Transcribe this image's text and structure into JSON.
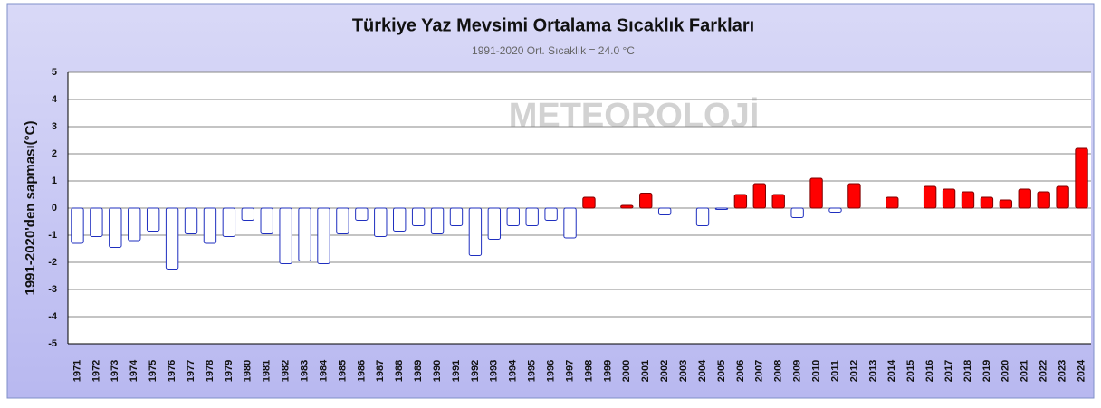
{
  "chart_data": {
    "type": "bar",
    "title": "Türkiye Yaz Mevsimi Ortalama Sıcaklık Farkları",
    "subtitle": "1991-2020 Ort. Sıcaklık = 24.0 °C",
    "y_label": "1991-2020'den sapması(°C)",
    "watermark": "METEOROLOJİ",
    "categories": [
      "1971",
      "1972",
      "1973",
      "1974",
      "1975",
      "1976",
      "1977",
      "1978",
      "1979",
      "1980",
      "1981",
      "1982",
      "1983",
      "1984",
      "1985",
      "1986",
      "1987",
      "1988",
      "1989",
      "1990",
      "1991",
      "1992",
      "1993",
      "1994",
      "1995",
      "1996",
      "1997",
      "1998",
      "1999",
      "2000",
      "2001",
      "2002",
      "2003",
      "2004",
      "2005",
      "2006",
      "2007",
      "2008",
      "2009",
      "2010",
      "2011",
      "2012",
      "2013",
      "2014",
      "2015",
      "2016",
      "2017",
      "2018",
      "2019",
      "2020",
      "2021",
      "2022",
      "2023",
      "2024"
    ],
    "values": [
      -1.3,
      -1.05,
      -1.45,
      -1.2,
      -0.85,
      -2.25,
      -0.95,
      -1.3,
      -1.05,
      -0.45,
      -0.95,
      -2.05,
      -1.95,
      -2.05,
      -0.95,
      -0.45,
      -1.05,
      -0.85,
      -0.65,
      -0.95,
      -0.65,
      -1.75,
      -1.15,
      -0.65,
      -0.65,
      -0.45,
      -1.1,
      0.4,
      0,
      0.1,
      0.55,
      -0.25,
      0,
      -0.65,
      -0.05,
      0.5,
      0.9,
      0.5,
      -0.35,
      1.1,
      -0.15,
      0.9,
      0,
      0.4,
      0,
      0.8,
      0.7,
      0.6,
      0.4,
      0.3,
      0.7,
      0.6,
      0.8,
      2.2
    ],
    "positive_color": "#ff0000",
    "negative_color": "#ffffff",
    "ylim": [
      -5,
      5
    ],
    "yticks": [
      -5,
      -4,
      -3,
      -2,
      -1,
      0,
      1,
      2,
      3,
      4,
      5
    ],
    "grid": true
  }
}
